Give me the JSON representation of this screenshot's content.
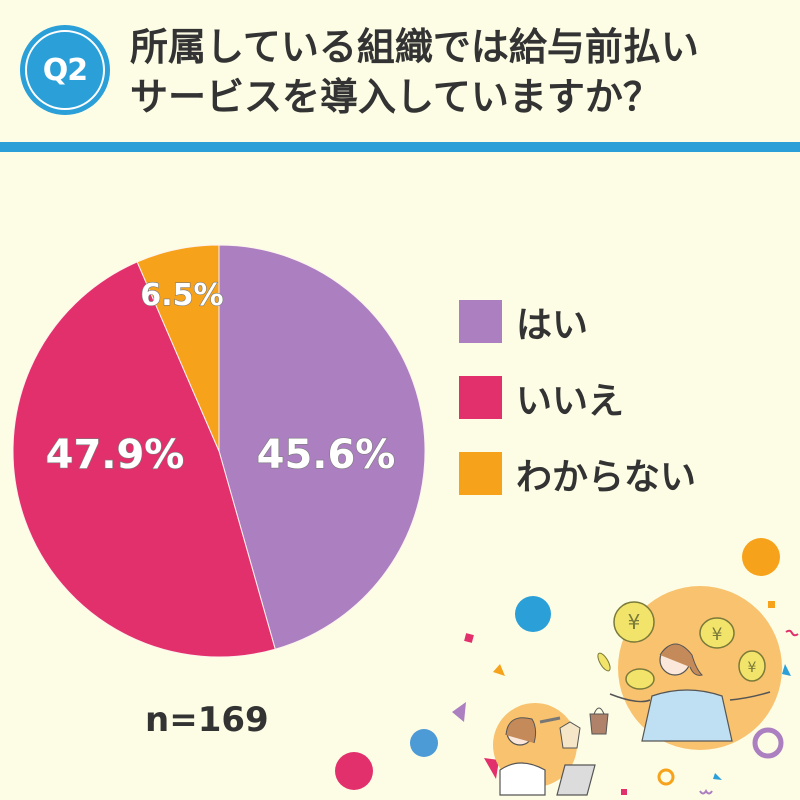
{
  "header": {
    "badge": "Q2",
    "title_lines": [
      "所属している組織では給与前払い",
      "サービスを導入していますか？"
    ]
  },
  "colors": {
    "background": "#fdfde6",
    "accent_blue": "#2a9fd8",
    "yes": "#ab7fc0",
    "no": "#e2306c",
    "unknown": "#f7a21b"
  },
  "legend": {
    "items": [
      {
        "label": "はい",
        "color": "#ab7fc0"
      },
      {
        "label": "いいえ",
        "color": "#e2306c"
      },
      {
        "label": "わからない",
        "color": "#f7a21b"
      }
    ]
  },
  "sample": {
    "label": "n=169"
  },
  "chart_data": {
    "type": "pie",
    "title": "所属している組織では給与前払いサービスを導入していますか？",
    "categories": [
      "はい",
      "いいえ",
      "わからない"
    ],
    "values": [
      45.6,
      47.9,
      6.5
    ],
    "labels": [
      "45.6%",
      "47.9%",
      "6.5%"
    ],
    "colors": [
      "#ab7fc0",
      "#e2306c",
      "#f7a21b"
    ],
    "start_angle": "12 o'clock",
    "direction": "clockwise",
    "legend_position": "right",
    "n": 169
  },
  "illustration": {
    "description": "Woman juggling yen coins and woman shopping on laptop with confetti decorations"
  }
}
